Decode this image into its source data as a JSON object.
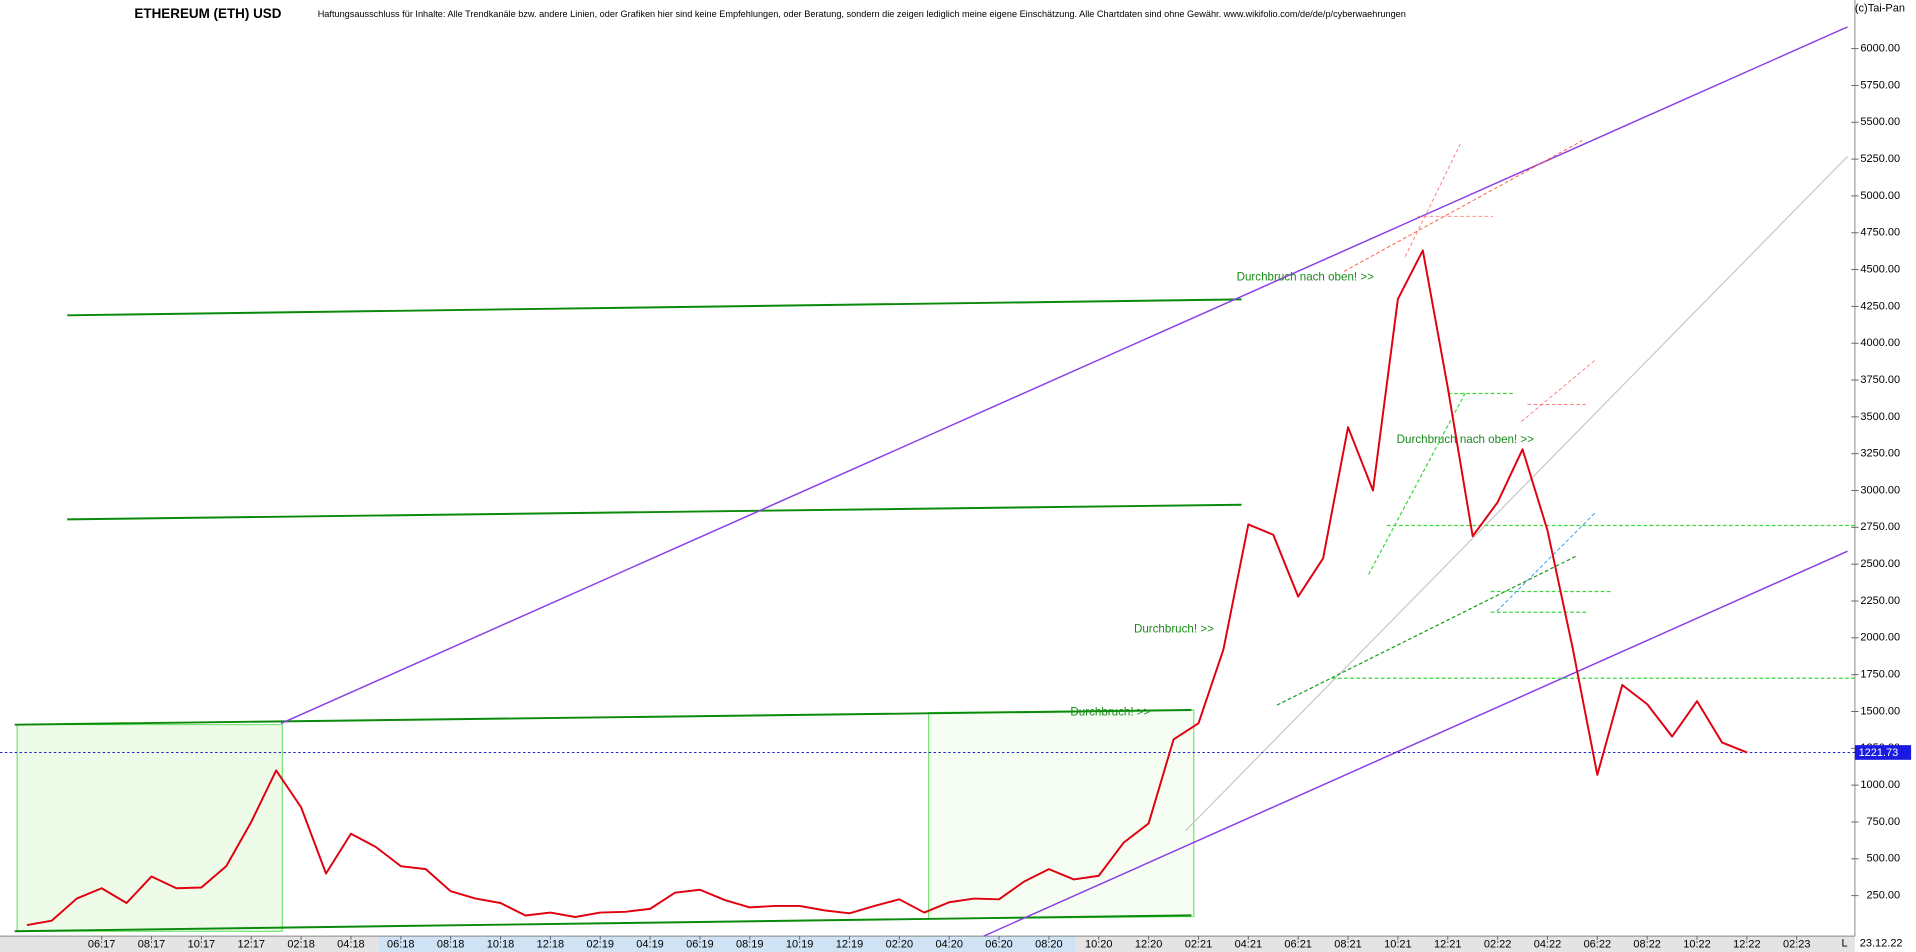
{
  "chart_data": {
    "type": "line",
    "title": "ETHEREUM (ETH) USD",
    "subtitle": "Haftungsausschluss für Inhalte: Alle Trendkanäle bzw. andere Linien, oder Grafiken hier sind keine Empfehlungen, oder Beratung, sondern die zeigen lediglich meine eigene Einschätzung. Alle Chartdaten sind ohne Gewähr.  www.wikifolio.com/de/de/p/cyberwaehrungen",
    "source": "(c)Tai-Pan",
    "date_label": "23.12.22",
    "scale_label": "L",
    "annotations": [
      "Durchbruch nach oben! >>",
      "Durchbruch nach oben! >>",
      "Durchbruch! >>",
      "Durchbruch! >>"
    ],
    "categories": [
      null,
      null,
      null,
      "06:17",
      null,
      "08:17",
      null,
      "10:17",
      null,
      "12:17",
      null,
      "02:18",
      null,
      "04:18",
      null,
      "06:18",
      null,
      "08:18",
      null,
      "10:18",
      null,
      "12:18",
      null,
      "02:19",
      null,
      "04:19",
      null,
      "06:19",
      null,
      "08:19",
      null,
      "10:19",
      null,
      "12:19",
      null,
      "02:20",
      null,
      "04:20",
      null,
      "06:20",
      null,
      "08:20",
      null,
      "10:20",
      null,
      "12:20",
      null,
      "02:21",
      null,
      "04:21",
      null,
      "06:21",
      null,
      "08:21",
      null,
      "10:21",
      null,
      "12:21",
      null,
      "02:22",
      null,
      "04:22",
      null,
      "06:22",
      null,
      "08:22",
      null,
      "10:22",
      null,
      "12:22",
      null,
      "02:23"
    ],
    "series": [
      {
        "name": "ETH",
        "color": "#e00010",
        "values": [
          50,
          80,
          230,
          300,
          200,
          380,
          300,
          305,
          450,
          750,
          1100,
          850,
          400,
          670,
          580,
          450,
          430,
          280,
          230,
          200,
          115,
          135,
          105,
          135,
          140,
          160,
          270,
          290,
          220,
          170,
          180,
          180,
          150,
          130,
          180,
          225,
          135,
          205,
          230,
          225,
          345,
          430,
          360,
          385,
          610,
          740,
          1310,
          1420,
          1920,
          2770,
          2700,
          2280,
          2540,
          3430,
          3000,
          4300,
          4630,
          3700,
          2690,
          2920,
          3280,
          2730,
          1940,
          1070,
          1680,
          1550,
          1330,
          1570,
          1290,
          1222,
          null,
          null
        ]
      }
    ],
    "last_value": 1221.73,
    "ylim": [
      0,
      6330
    ],
    "yticks": [
      {
        "value": 250,
        "label": "250.00"
      },
      {
        "value": 500,
        "label": "500.00"
      },
      {
        "value": 750,
        "label": "750.00"
      },
      {
        "value": 1000,
        "label": "1000.00"
      },
      {
        "value": 1250,
        "label": "1250.00"
      },
      {
        "value": 1500,
        "label": "1500.00"
      },
      {
        "value": 1750,
        "label": "1750.00"
      },
      {
        "value": 2000,
        "label": "2000.00"
      },
      {
        "value": 2250,
        "label": "2250.00"
      },
      {
        "value": 2500,
        "label": "2500.00"
      },
      {
        "value": 2750,
        "label": "2750.00"
      },
      {
        "value": 3000,
        "label": "3000.00"
      },
      {
        "value": 3250,
        "label": "3250.00"
      },
      {
        "value": 3500,
        "label": "3500.00"
      },
      {
        "value": 3750,
        "label": "3750.00"
      },
      {
        "value": 4000,
        "label": "4000.00"
      },
      {
        "value": 4250,
        "label": "4250.00"
      },
      {
        "value": 4500,
        "label": "4500.00"
      },
      {
        "value": 4750,
        "label": "4750.00"
      },
      {
        "value": 5000,
        "label": "5000.00"
      },
      {
        "value": 5250,
        "label": "5250.00"
      },
      {
        "value": 5500,
        "label": "5500.00"
      },
      {
        "value": 5750,
        "label": "5750.00"
      },
      {
        "value": 6000,
        "label": "6000.00"
      }
    ],
    "grid": false
  }
}
